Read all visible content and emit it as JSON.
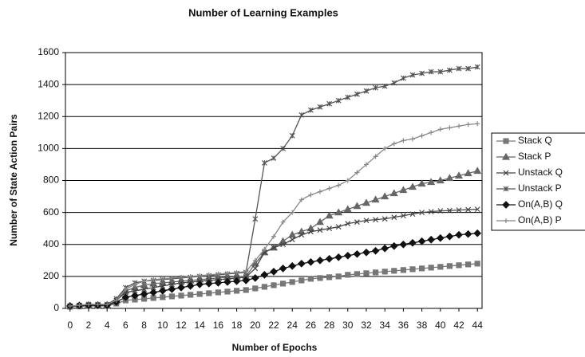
{
  "chart_data": {
    "type": "line",
    "title": "Number of Learning Examples",
    "x_label": "Number of Epochs",
    "y_label": "Number of State Action Pairs",
    "x": [
      0,
      1,
      2,
      3,
      4,
      5,
      6,
      7,
      8,
      9,
      10,
      11,
      12,
      13,
      14,
      15,
      16,
      17,
      18,
      19,
      20,
      21,
      22,
      23,
      24,
      25,
      26,
      27,
      28,
      29,
      30,
      31,
      32,
      33,
      34,
      35,
      36,
      37,
      38,
      39,
      40,
      41,
      42,
      43,
      44
    ],
    "xlim": [
      -0.5,
      44.5
    ],
    "xticks": [
      0,
      2,
      4,
      6,
      8,
      10,
      12,
      14,
      16,
      18,
      20,
      22,
      24,
      26,
      28,
      30,
      32,
      34,
      36,
      38,
      40,
      42,
      44
    ],
    "ylim": [
      0,
      1600
    ],
    "yticks": [
      0,
      200,
      400,
      600,
      800,
      1000,
      1200,
      1400,
      1600
    ],
    "grid": true,
    "legend": "right",
    "series": [
      {
        "name": "Stack Q",
        "color": "#777777",
        "marker": "square",
        "values": [
          10,
          12,
          15,
          15,
          15,
          30,
          50,
          55,
          60,
          65,
          70,
          75,
          80,
          85,
          90,
          95,
          100,
          105,
          110,
          115,
          125,
          135,
          145,
          155,
          165,
          175,
          185,
          190,
          195,
          200,
          210,
          215,
          220,
          225,
          230,
          235,
          240,
          245,
          250,
          255,
          260,
          265,
          270,
          275,
          280
        ]
      },
      {
        "name": "Stack P",
        "color": "#666666",
        "marker": "triangle",
        "values": [
          15,
          18,
          20,
          20,
          20,
          50,
          110,
          130,
          145,
          155,
          160,
          165,
          170,
          175,
          180,
          185,
          190,
          195,
          198,
          200,
          280,
          350,
          380,
          420,
          460,
          480,
          500,
          540,
          580,
          600,
          620,
          640,
          660,
          680,
          700,
          720,
          740,
          760,
          780,
          790,
          800,
          815,
          830,
          845,
          860
        ]
      },
      {
        "name": "Unstack Q",
        "color": "#444444",
        "marker": "x",
        "values": [
          15,
          18,
          20,
          20,
          20,
          50,
          100,
          110,
          120,
          130,
          140,
          150,
          160,
          165,
          170,
          175,
          180,
          185,
          190,
          195,
          250,
          350,
          380,
          400,
          430,
          460,
          480,
          490,
          500,
          510,
          530,
          540,
          550,
          555,
          560,
          570,
          580,
          590,
          600,
          605,
          610,
          612,
          615,
          618,
          620
        ]
      },
      {
        "name": "Unstack P",
        "color": "#555555",
        "marker": "star",
        "values": [
          15,
          20,
          25,
          25,
          25,
          60,
          130,
          160,
          170,
          175,
          180,
          185,
          190,
          195,
          200,
          205,
          210,
          215,
          220,
          225,
          560,
          910,
          940,
          1000,
          1080,
          1210,
          1240,
          1260,
          1280,
          1300,
          1320,
          1340,
          1360,
          1380,
          1390,
          1410,
          1440,
          1460,
          1470,
          1480,
          1480,
          1490,
          1500,
          1500,
          1510
        ]
      },
      {
        "name": "On(A,B) Q",
        "color": "#111111",
        "marker": "diamond",
        "values": [
          15,
          18,
          20,
          20,
          20,
          40,
          70,
          80,
          90,
          100,
          110,
          120,
          130,
          140,
          150,
          155,
          160,
          165,
          170,
          175,
          190,
          210,
          230,
          250,
          265,
          280,
          290,
          300,
          310,
          320,
          330,
          340,
          350,
          360,
          375,
          390,
          400,
          410,
          420,
          430,
          440,
          450,
          460,
          465,
          470
        ]
      },
      {
        "name": "On(A,B) P",
        "color": "#888888",
        "marker": "plus",
        "values": [
          15,
          20,
          25,
          25,
          25,
          50,
          120,
          150,
          170,
          180,
          185,
          190,
          195,
          200,
          205,
          210,
          215,
          220,
          225,
          230,
          300,
          370,
          450,
          540,
          600,
          680,
          710,
          730,
          750,
          770,
          800,
          850,
          900,
          950,
          1000,
          1030,
          1050,
          1060,
          1080,
          1100,
          1120,
          1130,
          1140,
          1150,
          1155
        ]
      }
    ]
  }
}
